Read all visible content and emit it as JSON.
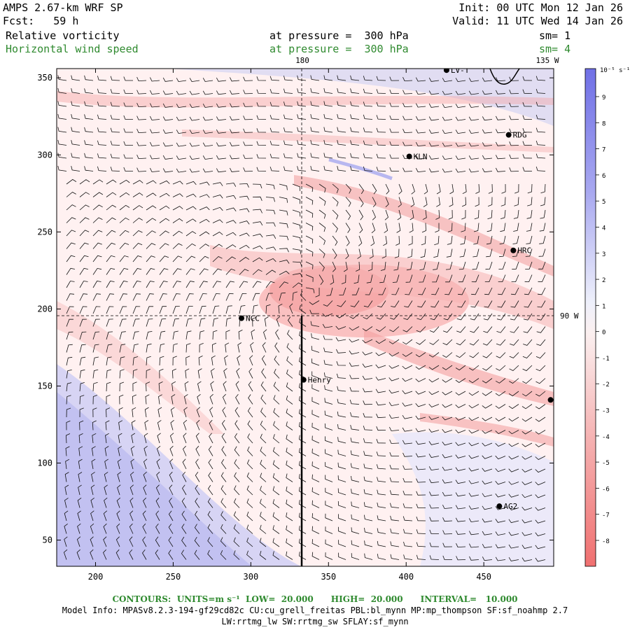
{
  "header": {
    "model": "AMPS 2.67-km WRF SP",
    "forecast": "Fcst:   59 h",
    "init": "Init: 00 UTC Mon 12 Jan 26",
    "valid": "Valid: 11 UTC Wed 14 Jan 26",
    "field1": "Relative vorticity",
    "field1_level": "at pressure =  300 hPa",
    "field1_sm": "sm= 1",
    "field2": "Horizontal wind speed",
    "field2_level": "at pressure =  300 hPa",
    "field2_sm": "sm= 4"
  },
  "map": {
    "x_ticks": [
      "200",
      "250",
      "300",
      "350",
      "400",
      "450"
    ],
    "x_tick_values": [
      200,
      250,
      300,
      350,
      400,
      450
    ],
    "y_ticks": [
      "50",
      "100",
      "150",
      "200",
      "250",
      "300",
      "350"
    ],
    "y_tick_values": [
      50,
      100,
      150,
      200,
      250,
      300,
      350
    ],
    "x_range": [
      175,
      495
    ],
    "y_range": [
      33,
      356
    ],
    "meridian_180_label": "180",
    "meridian_135w_label": "135 W",
    "meridian_90w_label": "90 W",
    "stations": [
      {
        "name": "LV-T",
        "x": 426,
        "y": 355
      },
      {
        "name": "RDG",
        "x": 466,
        "y": 313
      },
      {
        "name": "KLN",
        "x": 402,
        "y": 299
      },
      {
        "name": "HRC",
        "x": 469,
        "y": 238
      },
      {
        "name": "NCC",
        "x": 294,
        "y": 194
      },
      {
        "name": "Henry",
        "x": 334,
        "y": 154
      },
      {
        "name": "AG2",
        "x": 460,
        "y": 72
      },
      {
        "name": "",
        "x": 493,
        "y": 141
      }
    ]
  },
  "colorbar": {
    "units": "10⁻⁵ s⁻¹",
    "labels": [
      "9",
      "8",
      "7",
      "6",
      "5",
      "4",
      "3",
      "2",
      "1",
      "0",
      "-1",
      "-2",
      "-3",
      "-4",
      "-5",
      "-6",
      "-7",
      "-8"
    ],
    "top_color": "#7070e6",
    "bottom_color": "#f07070"
  },
  "footer": {
    "contours": "CONTOURS:  UNITS=m s⁻¹  LOW=  20.000      HIGH=  20.000      INTERVAL=   10.000",
    "model_info": "Model Info: MPASv8.2.3-194-gf29cd82c CU:cu_grell_freitas PBL:bl_mynn MP:mp_thompson SF:sf_noahmp 2.7",
    "model_info2": "LW:rrtmg_lw SW:rrtmg_sw SFLAY:sf_mynn"
  }
}
